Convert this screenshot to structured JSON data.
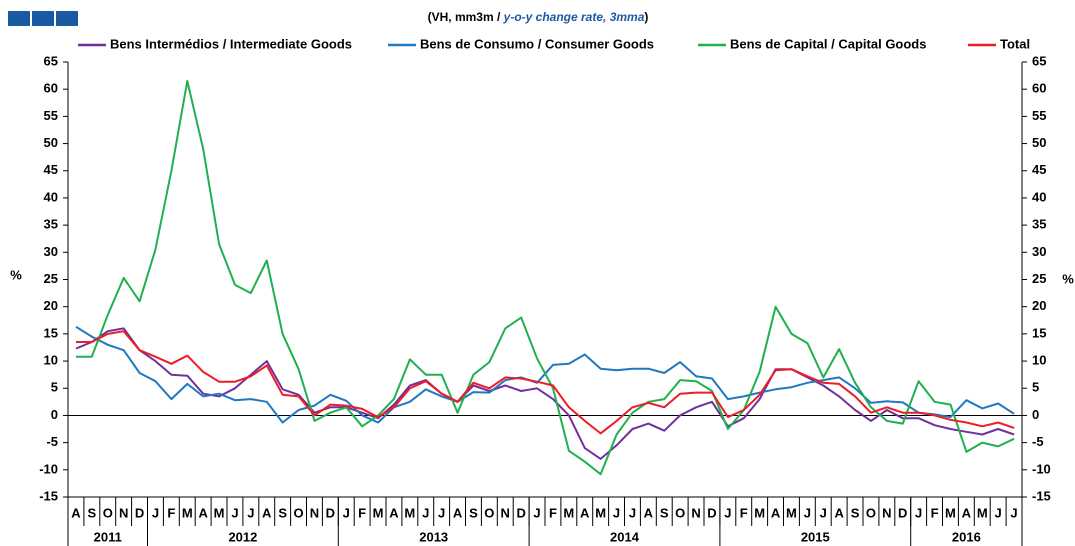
{
  "chart_data": {
    "type": "line",
    "subtitle": [
      "(VH, mm3m / ",
      "y-o-y change rate, 3mma",
      ")"
    ],
    "y_label": "%",
    "categories": [
      "A",
      "S",
      "O",
      "N",
      "D",
      "J",
      "F",
      "M",
      "A",
      "M",
      "J",
      "J",
      "A",
      "S",
      "O",
      "N",
      "D",
      "J",
      "F",
      "M",
      "A",
      "M",
      "J",
      "J",
      "A",
      "S",
      "O",
      "N",
      "D",
      "J",
      "F",
      "M",
      "A",
      "M",
      "J",
      "J",
      "A",
      "S",
      "O",
      "N",
      "D",
      "J",
      "F",
      "M",
      "A",
      "M",
      "J",
      "J",
      "A",
      "S",
      "O",
      "N",
      "D",
      "J",
      "F",
      "M",
      "A",
      "M",
      "J",
      "J"
    ],
    "years": [
      "2011",
      "2012",
      "2013",
      "2014",
      "2015",
      "2016"
    ],
    "series": [
      {
        "name": "Bens Intermédios / Intermediate Goods",
        "color": "#7030a0",
        "values": [
          12.3,
          13.5,
          15.5,
          16,
          12,
          10,
          7.5,
          7.3,
          4,
          3.5,
          5,
          7.5,
          10,
          4.8,
          3.8,
          0.5,
          1.5,
          1.5,
          0.5,
          -0.5,
          2,
          5.5,
          6.5,
          4,
          2.5,
          5.5,
          4.5,
          5.5,
          4.5,
          5,
          3,
          0,
          -6,
          -8,
          -5.5,
          -2.5,
          -1.5,
          -2.8,
          0,
          1.5,
          2.5,
          -2,
          -0.5,
          3,
          8.5,
          8.5,
          7,
          5.5,
          3.5,
          1,
          -1,
          1,
          -0.5,
          -0.5,
          -1.8,
          -2.5,
          -3,
          -3.5,
          -2.5,
          -3.5
        ]
      },
      {
        "name": "Bens de Consumo / Consumer Goods",
        "color": "#1f78c1",
        "values": [
          16.3,
          14.5,
          13,
          12,
          7.8,
          6.3,
          3,
          5.8,
          3.5,
          4,
          2.8,
          3,
          2.5,
          -1.3,
          1,
          1.8,
          3.8,
          2.7,
          0,
          -1.3,
          1.5,
          2.5,
          4.8,
          3.5,
          2.5,
          4.3,
          4.2,
          6.5,
          7,
          6,
          9.3,
          9.5,
          11.2,
          8.6,
          8.3,
          8.6,
          8.6,
          7.8,
          9.8,
          7.2,
          6.8,
          3,
          3.5,
          4.2,
          4.8,
          5.2,
          6,
          6.5,
          7,
          5,
          2.3,
          2.6,
          2.4,
          0.5,
          0.2,
          -0.3,
          2.8,
          1.3,
          2.2,
          0.3
        ]
      },
      {
        "name": "Bens de Capital / Capital Goods",
        "color": "#1fb04f",
        "values": [
          10.8,
          10.8,
          18.5,
          25.3,
          21,
          30.5,
          45,
          61.5,
          49,
          31.5,
          24,
          22.5,
          28.5,
          15,
          8.5,
          -1,
          0.5,
          1.5,
          -2,
          0,
          3,
          10.3,
          7.5,
          7.5,
          0.5,
          7.5,
          9.8,
          16,
          18,
          10.5,
          5,
          -6.5,
          -8.5,
          -10.8,
          -3.5,
          0.5,
          2.5,
          3,
          6.5,
          6.3,
          4.5,
          -2.5,
          1,
          8,
          20,
          15,
          13.3,
          7,
          12.2,
          6,
          1.5,
          -1,
          -1.5,
          6.3,
          2.5,
          2,
          -6.7,
          -5,
          -5.7,
          -4.3
        ]
      },
      {
        "name": "Total",
        "color": "#ee1c25",
        "values": [
          13.5,
          13.5,
          15,
          15.5,
          12,
          10.8,
          9.5,
          11,
          8,
          6.2,
          6.2,
          7.2,
          9.2,
          3.8,
          3.5,
          0,
          2,
          1.8,
          1.2,
          -0.3,
          1.5,
          5,
          6.3,
          4,
          2.5,
          6,
          5,
          7,
          6.8,
          6.2,
          5.5,
          1.5,
          -1,
          -3.3,
          -1,
          1.5,
          2.3,
          1.5,
          4,
          4.2,
          4.2,
          -0.3,
          1,
          3.8,
          8.3,
          8.5,
          7.2,
          6,
          5.8,
          3.5,
          0.5,
          1.5,
          0.5,
          0.5,
          0,
          -0.8,
          -1.3,
          -2,
          -1.3,
          -2.3
        ]
      }
    ],
    "ylim": [
      -15,
      65
    ],
    "yticks": [
      -15,
      -10,
      -5,
      0,
      5,
      10,
      15,
      20,
      25,
      30,
      35,
      40,
      45,
      50,
      55,
      60,
      65
    ]
  }
}
